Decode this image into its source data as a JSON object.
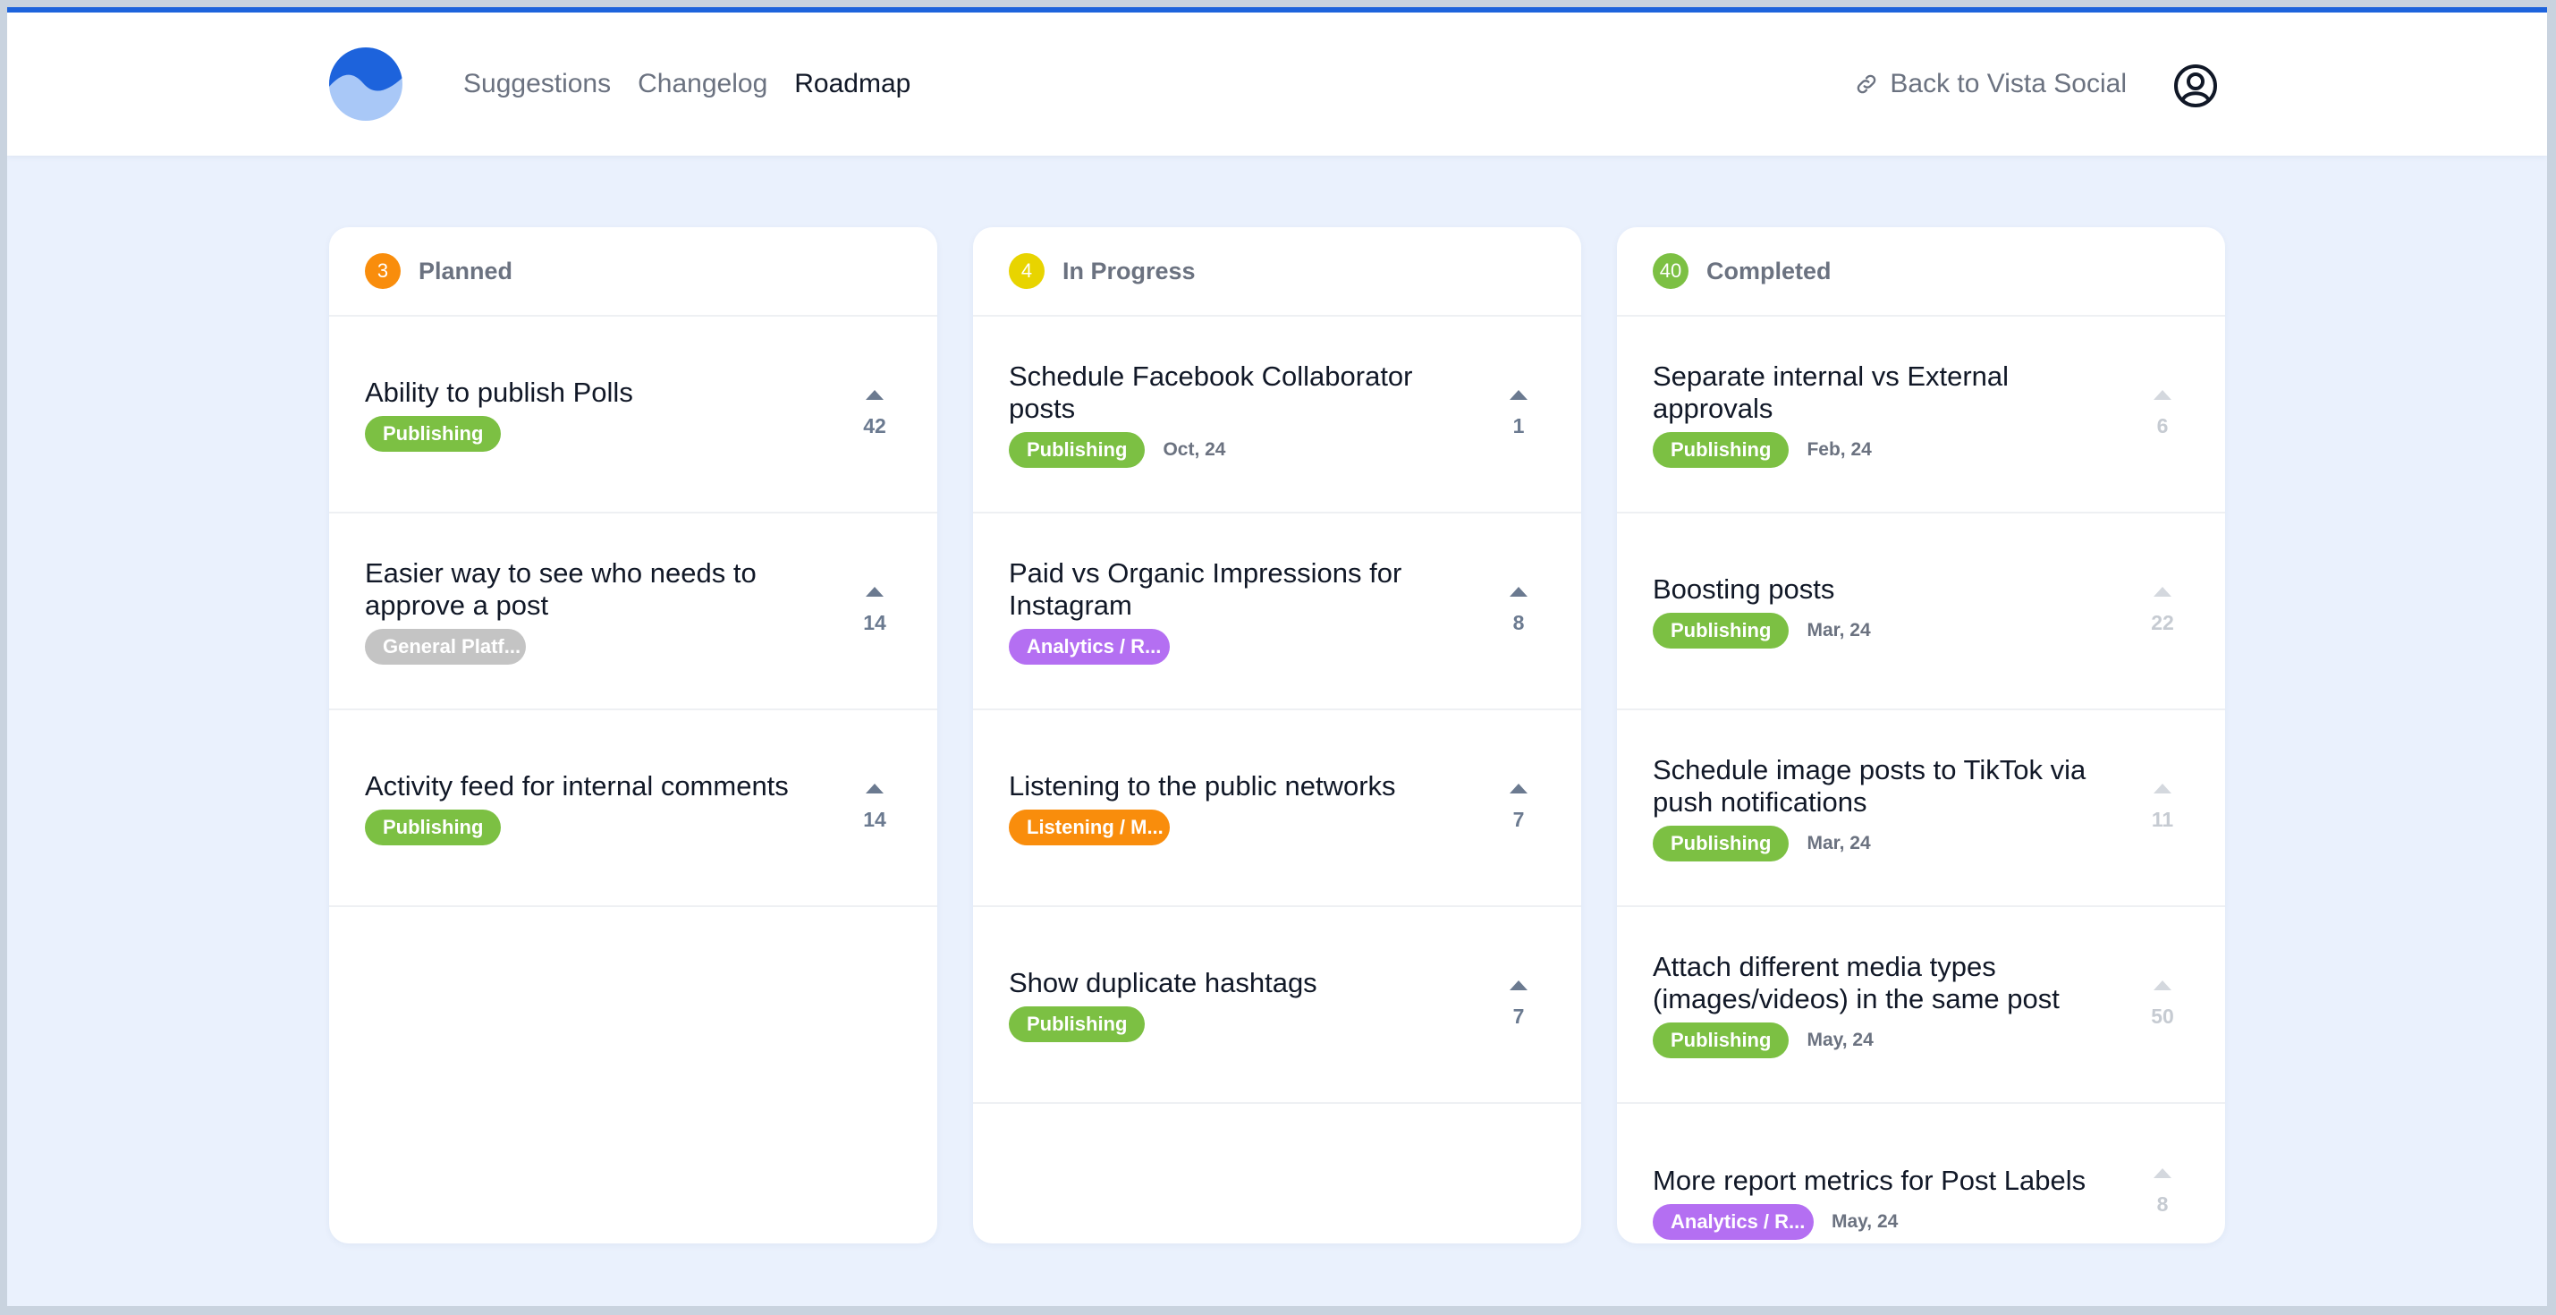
{
  "header": {
    "logo_icon": "wave-logo-icon",
    "nav": [
      {
        "label": "Suggestions",
        "active": false
      },
      {
        "label": "Changelog",
        "active": false
      },
      {
        "label": "Roadmap",
        "active": true
      }
    ],
    "back_link": "Back to Vista Social",
    "avatar_icon": "user-circle-icon"
  },
  "colors": {
    "accent": "#1d63dc",
    "planned": "#f98d0c",
    "in_progress": "#e8d400",
    "completed": "#7cc043",
    "publishing": "#7cc043",
    "general": "#c4c4c4",
    "analytics": "#b46ff2",
    "listening": "#f98d0c"
  },
  "columns": [
    {
      "count": "3",
      "title": "Planned",
      "cards": [
        {
          "title": "Ability to publish Polls",
          "tag": "Publishing",
          "date": "",
          "votes": "42"
        },
        {
          "title": "Easier way to see who needs to approve a post",
          "tag": "General Platf...",
          "date": "",
          "votes": "14"
        },
        {
          "title": "Activity feed for internal comments",
          "tag": "Publishing",
          "date": "",
          "votes": "14"
        }
      ]
    },
    {
      "count": "4",
      "title": "In Progress",
      "cards": [
        {
          "title": "Schedule Facebook Collaborator posts",
          "tag": "Publishing",
          "date": "Oct, 24",
          "votes": "1"
        },
        {
          "title": "Paid vs Organic Impressions for Instagram",
          "tag": "Analytics / R...",
          "date": "",
          "votes": "8"
        },
        {
          "title": "Listening to the public networks",
          "tag": "Listening / M...",
          "date": "",
          "votes": "7"
        },
        {
          "title": "Show duplicate hashtags",
          "tag": "Publishing",
          "date": "",
          "votes": "7"
        }
      ]
    },
    {
      "count": "40",
      "title": "Completed",
      "cards": [
        {
          "title": "Separate internal vs External approvals",
          "tag": "Publishing",
          "date": "Feb, 24",
          "votes": "6"
        },
        {
          "title": "Boosting posts",
          "tag": "Publishing",
          "date": "Mar, 24",
          "votes": "22"
        },
        {
          "title": "Schedule image posts to TikTok via push notifications",
          "tag": "Publishing",
          "date": "Mar, 24",
          "votes": "11"
        },
        {
          "title": "Attach different media types (images/videos) in the same post",
          "tag": "Publishing",
          "date": "May, 24",
          "votes": "50"
        },
        {
          "title": "More report metrics for Post Labels",
          "tag": "Analytics / R...",
          "date": "May, 24",
          "votes": "8"
        }
      ]
    }
  ]
}
